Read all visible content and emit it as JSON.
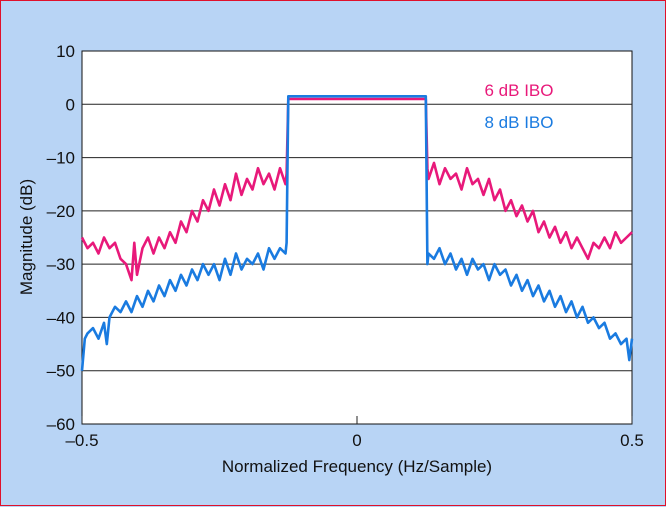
{
  "chart_data": {
    "type": "line",
    "title": "",
    "xlabel": "Normalized Frequency (Hz/Sample)",
    "ylabel": "Magnitude (dB)",
    "xlim": [
      -0.5,
      0.5
    ],
    "ylim": [
      -60,
      10
    ],
    "grid": "horizontal",
    "x_ticks": [
      -0.5,
      0,
      0.5
    ],
    "x_tick_labels": [
      "–0.5",
      "0",
      "0.5"
    ],
    "y_ticks": [
      10,
      0,
      -10,
      -20,
      -30,
      -40,
      -50,
      -60
    ],
    "y_tick_labels": [
      "10",
      "0",
      "–10",
      "–20",
      "–30",
      "–40",
      "–50",
      "–60"
    ],
    "legend_placement": "inside-top-right",
    "series": [
      {
        "name": "6 dB IBO",
        "color": "#e8197a",
        "points": [
          [
            -0.5,
            -25
          ],
          [
            -0.49,
            -27
          ],
          [
            -0.48,
            -26
          ],
          [
            -0.47,
            -28
          ],
          [
            -0.46,
            -25
          ],
          [
            -0.45,
            -27
          ],
          [
            -0.44,
            -26
          ],
          [
            -0.43,
            -29
          ],
          [
            -0.42,
            -30
          ],
          [
            -0.41,
            -33
          ],
          [
            -0.405,
            -26
          ],
          [
            -0.4,
            -32
          ],
          [
            -0.39,
            -27
          ],
          [
            -0.38,
            -25
          ],
          [
            -0.37,
            -28
          ],
          [
            -0.36,
            -25
          ],
          [
            -0.35,
            -27
          ],
          [
            -0.34,
            -24
          ],
          [
            -0.33,
            -26
          ],
          [
            -0.32,
            -22
          ],
          [
            -0.31,
            -24
          ],
          [
            -0.3,
            -20
          ],
          [
            -0.29,
            -22
          ],
          [
            -0.28,
            -18
          ],
          [
            -0.27,
            -20
          ],
          [
            -0.26,
            -16
          ],
          [
            -0.25,
            -19
          ],
          [
            -0.24,
            -15
          ],
          [
            -0.23,
            -18
          ],
          [
            -0.22,
            -13
          ],
          [
            -0.21,
            -17
          ],
          [
            -0.2,
            -14
          ],
          [
            -0.19,
            -16
          ],
          [
            -0.18,
            -12
          ],
          [
            -0.17,
            -15
          ],
          [
            -0.16,
            -13
          ],
          [
            -0.15,
            -16
          ],
          [
            -0.14,
            -12
          ],
          [
            -0.13,
            -15
          ],
          [
            -0.128,
            -13
          ],
          [
            -0.125,
            1.0
          ],
          [
            0.125,
            1.0
          ],
          [
            0.128,
            -12
          ],
          [
            0.13,
            -14
          ],
          [
            0.14,
            -11
          ],
          [
            0.15,
            -15
          ],
          [
            0.16,
            -12
          ],
          [
            0.17,
            -14
          ],
          [
            0.18,
            -13
          ],
          [
            0.19,
            -16
          ],
          [
            0.2,
            -12
          ],
          [
            0.21,
            -15
          ],
          [
            0.22,
            -14
          ],
          [
            0.23,
            -17
          ],
          [
            0.24,
            -14
          ],
          [
            0.25,
            -18
          ],
          [
            0.26,
            -16
          ],
          [
            0.27,
            -20
          ],
          [
            0.28,
            -18
          ],
          [
            0.29,
            -21
          ],
          [
            0.3,
            -19
          ],
          [
            0.31,
            -22
          ],
          [
            0.32,
            -20
          ],
          [
            0.33,
            -24
          ],
          [
            0.34,
            -22
          ],
          [
            0.35,
            -25
          ],
          [
            0.36,
            -23
          ],
          [
            0.37,
            -26
          ],
          [
            0.38,
            -24
          ],
          [
            0.39,
            -27
          ],
          [
            0.4,
            -25
          ],
          [
            0.41,
            -27
          ],
          [
            0.42,
            -29
          ],
          [
            0.43,
            -26
          ],
          [
            0.44,
            -27
          ],
          [
            0.45,
            -25
          ],
          [
            0.46,
            -27
          ],
          [
            0.47,
            -24
          ],
          [
            0.48,
            -26
          ],
          [
            0.49,
            -25
          ],
          [
            0.5,
            -24
          ]
        ]
      },
      {
        "name": "8 dB IBO",
        "color": "#1a7be0",
        "points": [
          [
            -0.5,
            -50
          ],
          [
            -0.495,
            -44
          ],
          [
            -0.49,
            -43
          ],
          [
            -0.48,
            -42
          ],
          [
            -0.47,
            -44
          ],
          [
            -0.46,
            -41
          ],
          [
            -0.455,
            -45
          ],
          [
            -0.45,
            -40
          ],
          [
            -0.44,
            -38
          ],
          [
            -0.43,
            -39
          ],
          [
            -0.42,
            -37
          ],
          [
            -0.41,
            -39
          ],
          [
            -0.4,
            -36
          ],
          [
            -0.39,
            -38
          ],
          [
            -0.38,
            -35
          ],
          [
            -0.37,
            -37
          ],
          [
            -0.36,
            -34
          ],
          [
            -0.35,
            -36
          ],
          [
            -0.34,
            -33
          ],
          [
            -0.33,
            -35
          ],
          [
            -0.32,
            -32
          ],
          [
            -0.31,
            -34
          ],
          [
            -0.3,
            -31
          ],
          [
            -0.29,
            -33
          ],
          [
            -0.28,
            -30
          ],
          [
            -0.27,
            -32
          ],
          [
            -0.26,
            -30
          ],
          [
            -0.25,
            -33
          ],
          [
            -0.24,
            -29
          ],
          [
            -0.23,
            -32
          ],
          [
            -0.22,
            -28
          ],
          [
            -0.21,
            -31
          ],
          [
            -0.2,
            -29
          ],
          [
            -0.19,
            -30
          ],
          [
            -0.18,
            -28
          ],
          [
            -0.17,
            -31
          ],
          [
            -0.16,
            -27
          ],
          [
            -0.15,
            -29
          ],
          [
            -0.14,
            -27
          ],
          [
            -0.13,
            -28
          ],
          [
            -0.128,
            -26
          ],
          [
            -0.125,
            1.5
          ],
          [
            0.125,
            1.5
          ],
          [
            0.128,
            -30
          ],
          [
            0.13,
            -28
          ],
          [
            0.14,
            -29
          ],
          [
            0.15,
            -27
          ],
          [
            0.16,
            -30
          ],
          [
            0.17,
            -28
          ],
          [
            0.18,
            -31
          ],
          [
            0.19,
            -29
          ],
          [
            0.2,
            -32
          ],
          [
            0.21,
            -29
          ],
          [
            0.22,
            -31
          ],
          [
            0.23,
            -30
          ],
          [
            0.24,
            -33
          ],
          [
            0.25,
            -30
          ],
          [
            0.26,
            -32
          ],
          [
            0.27,
            -31
          ],
          [
            0.28,
            -34
          ],
          [
            0.29,
            -32
          ],
          [
            0.3,
            -35
          ],
          [
            0.31,
            -33
          ],
          [
            0.32,
            -36
          ],
          [
            0.33,
            -34
          ],
          [
            0.34,
            -37
          ],
          [
            0.35,
            -35
          ],
          [
            0.36,
            -38
          ],
          [
            0.37,
            -36
          ],
          [
            0.38,
            -39
          ],
          [
            0.39,
            -37
          ],
          [
            0.4,
            -40
          ],
          [
            0.41,
            -38
          ],
          [
            0.42,
            -41
          ],
          [
            0.43,
            -40
          ],
          [
            0.44,
            -42
          ],
          [
            0.45,
            -41
          ],
          [
            0.46,
            -44
          ],
          [
            0.47,
            -43
          ],
          [
            0.48,
            -45
          ],
          [
            0.49,
            -44
          ],
          [
            0.495,
            -48
          ],
          [
            0.5,
            -44
          ]
        ]
      }
    ]
  }
}
